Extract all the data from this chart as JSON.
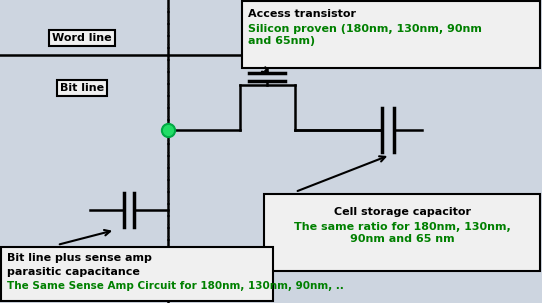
{
  "bg_color": "#cdd5e0",
  "inner_bg": "#f0f0f0",
  "line_color": "#000000",
  "green_color": "#008000",
  "fig_width": 5.42,
  "fig_height": 3.03,
  "dpi": 100,
  "word_line_label": "Word line",
  "bit_line_label": "Bit line",
  "box1_title": "Access transistor",
  "box1_text": "Silicon proven (180nm, 130nm, 90nm\nand 65nm)",
  "box2_title": "Cell storage capacitor",
  "box2_text": "The same ratio for 180nm, 130nm,\n90nm and 65 nm",
  "box3_line1": "Bit line plus sense amp",
  "box3_line2": "parasitic capacitance",
  "box3_green": "The Same Sense Amp Circuit for 180nm, 130nm, 90nm, .."
}
